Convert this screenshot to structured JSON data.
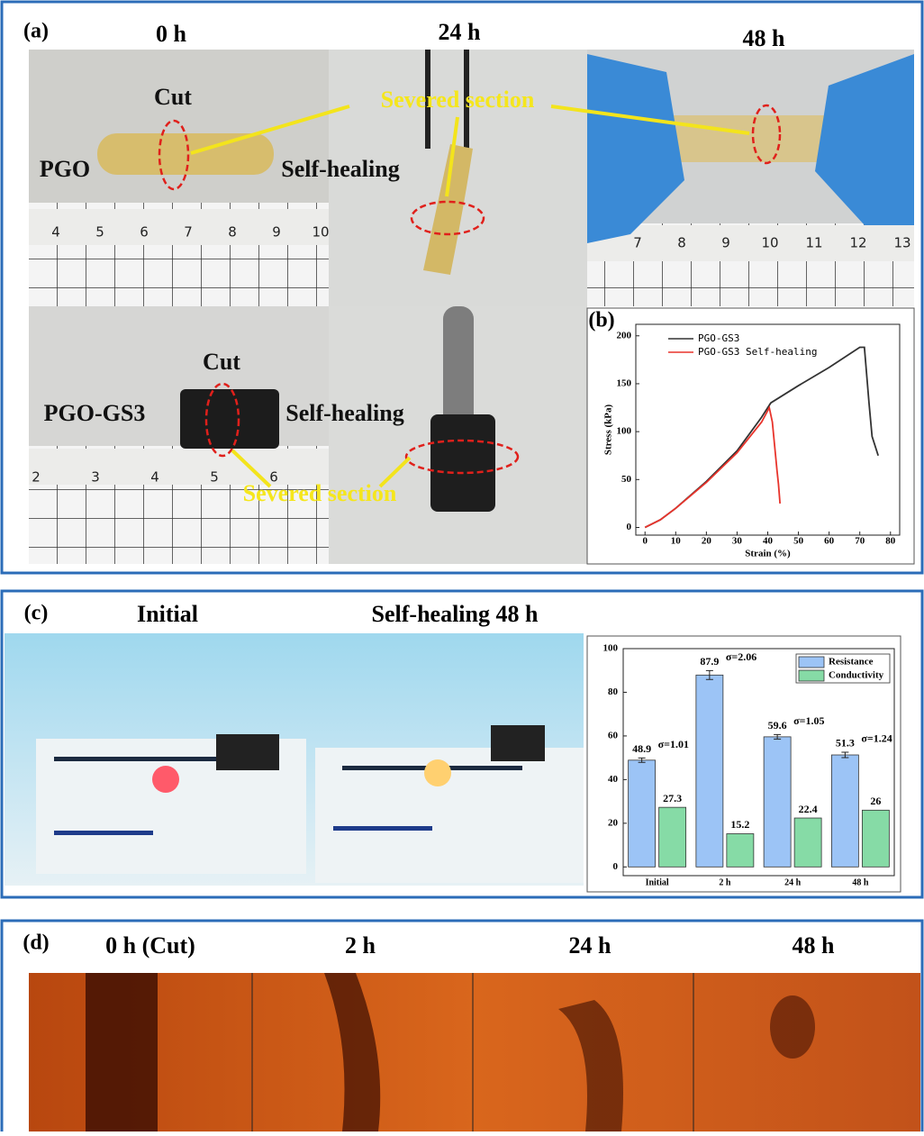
{
  "figure": {
    "panel_a": {
      "label": "(a)",
      "titles": [
        "0 h",
        "24 h",
        "48 h"
      ],
      "annotations": [
        "Cut",
        "PGO",
        "Self-healing",
        "Severed section",
        "Cut",
        "PGO-GS3",
        "Self-healing",
        "Severed section"
      ],
      "rulers": [
        [
          4,
          5,
          6,
          7,
          8,
          9,
          10
        ],
        [
          7,
          8,
          9,
          10,
          11,
          12,
          13
        ],
        [
          2,
          3,
          4,
          5,
          6
        ]
      ]
    },
    "panel_c": {
      "label": "(c)",
      "titles": [
        "Initial",
        "Self-healing 48 h"
      ]
    },
    "panel_d": {
      "label": "(d)",
      "titles": [
        "0 h (Cut)",
        "2 h",
        "24 h",
        "48 h"
      ]
    }
  },
  "chart_data": [
    {
      "type": "line",
      "label": "(b)",
      "xlabel": "Strain (%)",
      "ylabel": "Stress (kPa)",
      "xlim": [
        -3,
        83
      ],
      "ylim": [
        -8,
        212
      ],
      "xticks": [
        0,
        10,
        20,
        30,
        40,
        50,
        60,
        70,
        80
      ],
      "yticks": [
        0,
        50,
        100,
        150,
        200
      ],
      "legend": "upper left",
      "series": [
        {
          "name": "PGO-GS3",
          "color": "#333333",
          "x": [
            0,
            5,
            10,
            20,
            30,
            38,
            41,
            50,
            60,
            70,
            71.5,
            73,
            74,
            76
          ],
          "values": [
            0,
            8,
            20,
            48,
            80,
            115,
            130,
            148,
            167,
            188,
            188,
            130,
            95,
            75
          ]
        },
        {
          "name": "PGO-GS3 Self-healing",
          "color": "#e8342c",
          "x": [
            0,
            5,
            10,
            20,
            30,
            38,
            40.5,
            41.5,
            43,
            43.5,
            44
          ],
          "values": [
            0,
            8,
            20,
            47,
            78,
            110,
            125,
            110,
            60,
            45,
            25
          ]
        }
      ]
    },
    {
      "type": "bar",
      "categories": [
        "Initial",
        "2 h",
        "24 h",
        "48 h"
      ],
      "ylim": [
        -4,
        100
      ],
      "yticks": [
        0,
        20,
        40,
        60,
        80,
        100
      ],
      "legend": "upper right",
      "series": [
        {
          "name": "Resistance",
          "color": "#9cc4f6",
          "values": [
            48.9,
            87.9,
            59.6,
            51.3
          ],
          "errors": [
            1.01,
            2.06,
            1.05,
            1.24
          ],
          "error_labels": [
            "σ=1.01",
            "σ=2.06",
            "σ=1.05",
            "σ=1.24"
          ]
        },
        {
          "name": "Conductivity",
          "color": "#86dba6",
          "values": [
            27.3,
            15.2,
            22.4,
            26
          ]
        }
      ]
    }
  ]
}
